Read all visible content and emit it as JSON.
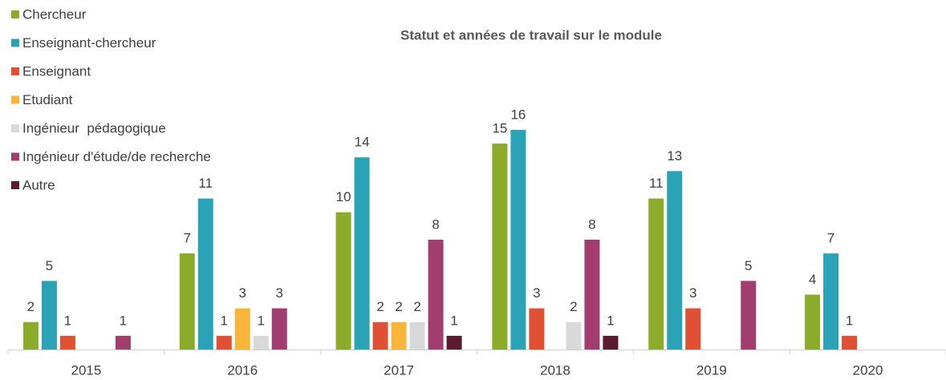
{
  "chart_data": {
    "type": "bar",
    "title": "Statut et années de travail sur le module",
    "categories": [
      "2015",
      "2016",
      "2017",
      "2018",
      "2019",
      "2020"
    ],
    "series": [
      {
        "name": "Chercheur",
        "color": "#8aac2a",
        "values": [
          2,
          7,
          10,
          15,
          11,
          4
        ]
      },
      {
        "name": "Enseignant-chercheur",
        "color": "#2aa3b7",
        "values": [
          5,
          11,
          14,
          16,
          13,
          7
        ]
      },
      {
        "name": "Enseignant",
        "color": "#e05133",
        "values": [
          1,
          1,
          2,
          3,
          3,
          1
        ]
      },
      {
        "name": "Etudiant",
        "color": "#f9b53a",
        "values": [
          null,
          3,
          2,
          null,
          null,
          null
        ]
      },
      {
        "name": "Ingénieur  pédagogique",
        "color": "#d9d9d9",
        "values": [
          null,
          1,
          2,
          2,
          null,
          null
        ]
      },
      {
        "name": "Ingénieur d'étude/de recherche",
        "color": "#a23e6f",
        "values": [
          1,
          3,
          8,
          8,
          5,
          null
        ]
      },
      {
        "name": "Autre",
        "color": "#5a1a30",
        "values": [
          null,
          null,
          1,
          1,
          null,
          null
        ]
      }
    ],
    "legend": "top-left"
  }
}
